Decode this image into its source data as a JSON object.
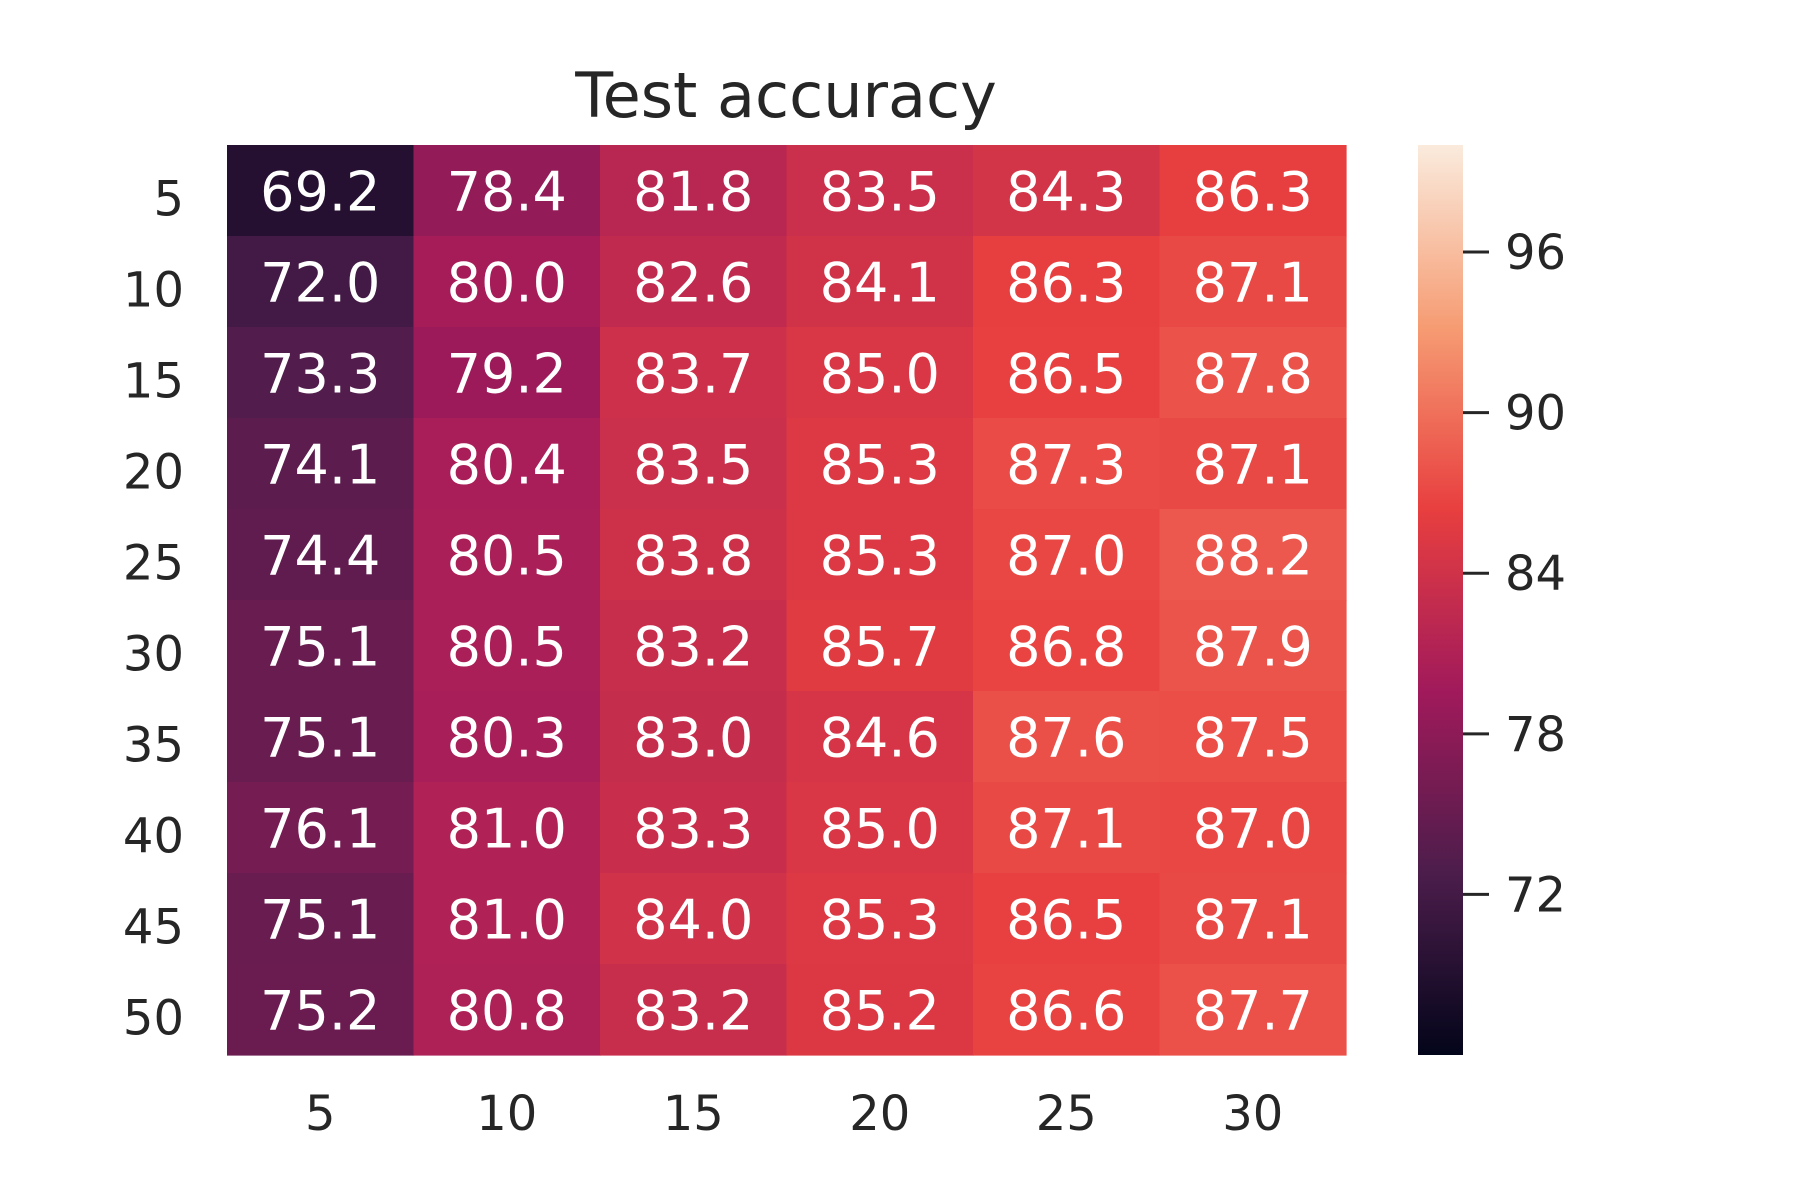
{
  "chart_data": {
    "type": "heatmap",
    "title": "Test accuracy",
    "xlabel": "",
    "ylabel": "",
    "x_categories": [
      "5",
      "10",
      "15",
      "20",
      "25",
      "30"
    ],
    "y_categories": [
      "5",
      "10",
      "15",
      "20",
      "25",
      "30",
      "35",
      "40",
      "45",
      "50"
    ],
    "values": [
      [
        69.2,
        78.4,
        81.8,
        83.5,
        84.3,
        86.3
      ],
      [
        72.0,
        80.0,
        82.6,
        84.1,
        86.3,
        87.1
      ],
      [
        73.3,
        79.2,
        83.7,
        85.0,
        86.5,
        87.8
      ],
      [
        74.1,
        80.4,
        83.5,
        85.3,
        87.3,
        87.1
      ],
      [
        74.4,
        80.5,
        83.8,
        85.3,
        87.0,
        88.2
      ],
      [
        75.1,
        80.5,
        83.2,
        85.7,
        86.8,
        87.9
      ],
      [
        75.1,
        80.3,
        83.0,
        84.6,
        87.6,
        87.5
      ],
      [
        76.1,
        81.0,
        83.3,
        85.0,
        87.1,
        87.0
      ],
      [
        75.1,
        81.0,
        84.0,
        85.3,
        86.5,
        87.1
      ],
      [
        75.2,
        80.8,
        83.2,
        85.2,
        86.6,
        87.7
      ]
    ],
    "colorbar": {
      "range": [
        66,
        100
      ],
      "ticks": [
        72,
        78,
        84,
        90,
        96
      ],
      "colormap": "rocket",
      "colors": [
        "#03051a",
        "#4c1d4b",
        "#a11a5b",
        "#e83f3f",
        "#f69c73",
        "#faebdd"
      ]
    },
    "annotations": true,
    "grid": false
  }
}
